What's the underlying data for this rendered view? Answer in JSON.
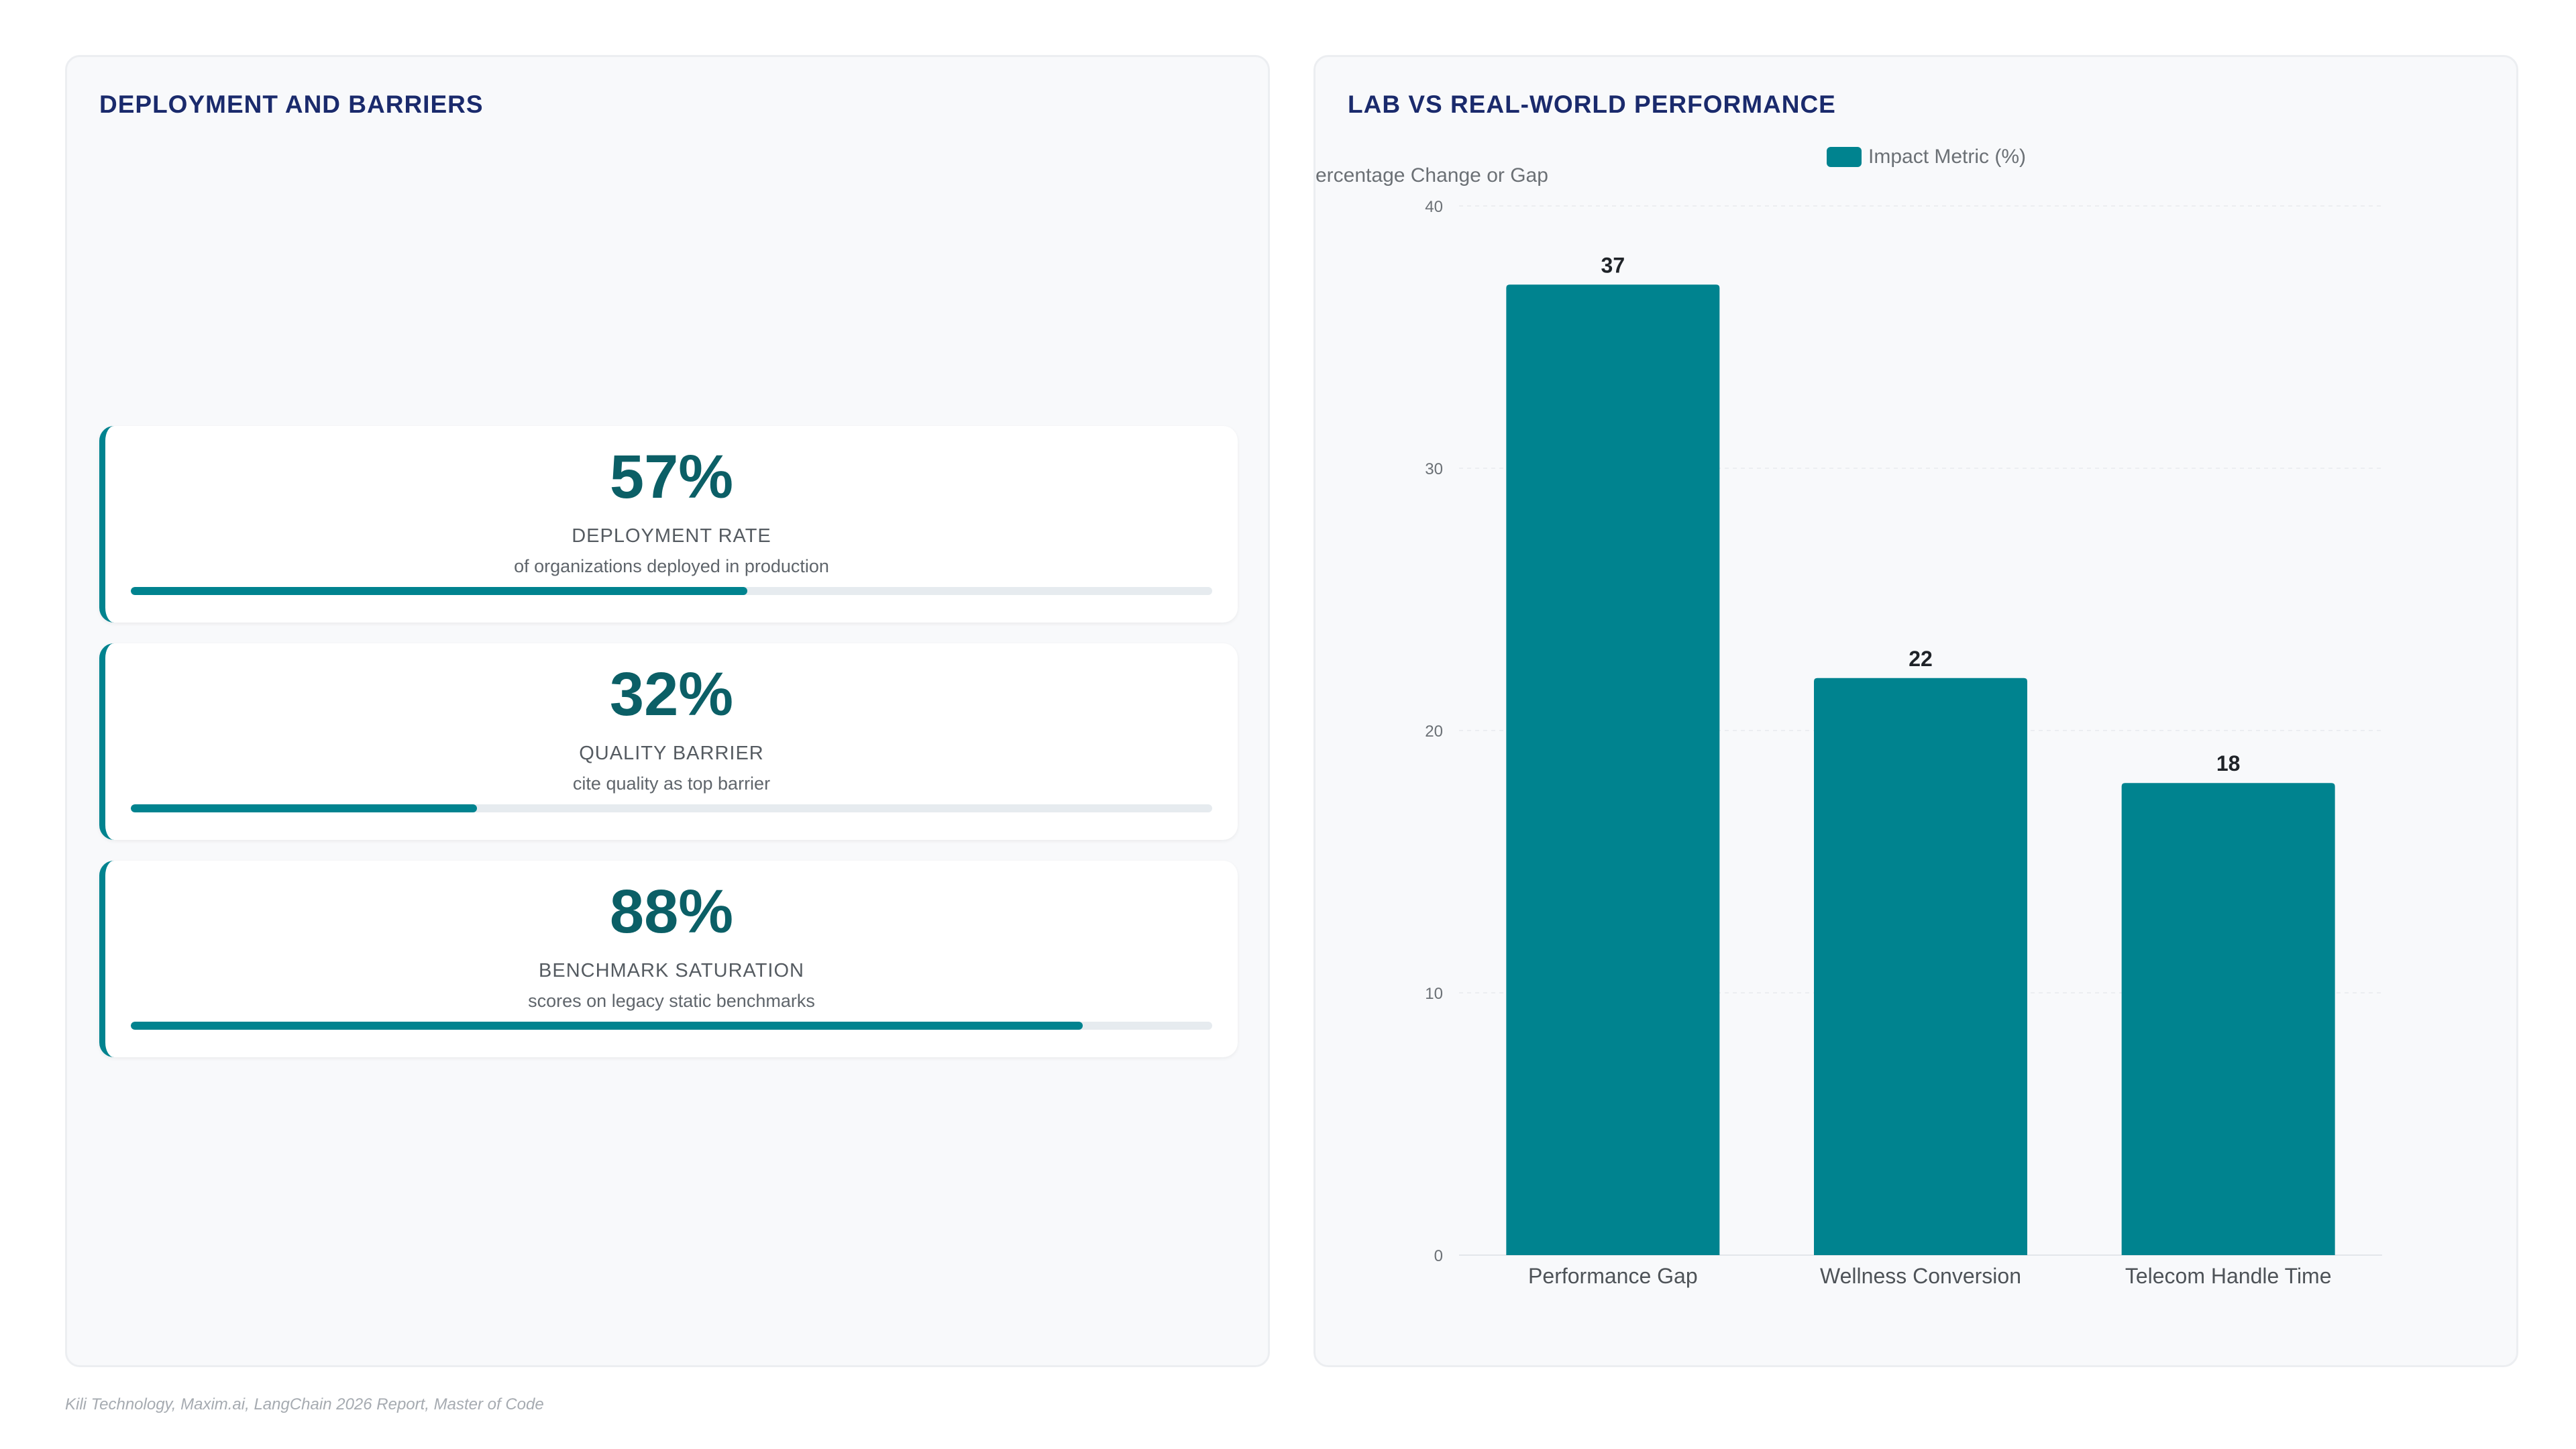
{
  "left_panel": {
    "title": "DEPLOYMENT AND BARRIERS",
    "kpis": [
      {
        "value": "57%",
        "label": "DEPLOYMENT RATE",
        "description": "of organizations deployed in production",
        "progress": 0.57
      },
      {
        "value": "32%",
        "label": "QUALITY BARRIER",
        "description": "cite quality as top barrier",
        "progress": 0.32
      },
      {
        "value": "88%",
        "label": "BENCHMARK SATURATION",
        "description": "scores on legacy static benchmarks",
        "progress": 0.88
      }
    ]
  },
  "right_panel": {
    "title": "LAB VS REAL-WORLD PERFORMANCE"
  },
  "chart_data": {
    "type": "bar",
    "categories": [
      "Performance Gap",
      "Wellness Conversion",
      "Telecom Handle Time"
    ],
    "series": [
      {
        "name": "Impact Metric (%)",
        "values": [
          37,
          22,
          18
        ]
      }
    ],
    "ylabel": "Percentage Change or Gap",
    "ylabel_visible": "ercentage Change or Gap",
    "ylim": [
      0,
      40
    ],
    "yticks": [
      0,
      10,
      20,
      30,
      40
    ],
    "data_labels": true,
    "grid": true,
    "legend": "top",
    "color": "#00838f"
  },
  "footer": {
    "source": "Kili Technology, Maxim.ai, LangChain 2026 Report, Master of Code"
  }
}
